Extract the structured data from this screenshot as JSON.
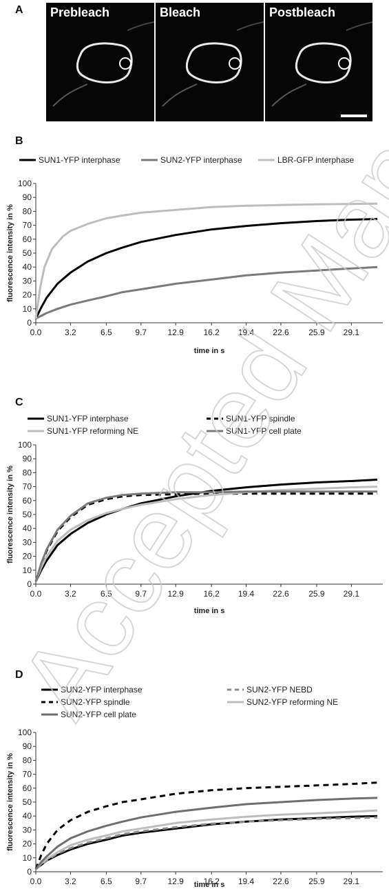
{
  "panel_letters": {
    "a": "A",
    "b": "B",
    "c": "C",
    "d": "D"
  },
  "micrographs": {
    "labels": [
      "Prebleach",
      "Bleach",
      "Postbleach"
    ],
    "ring_color": "#e8e8e8",
    "circle_color": "#ffffff"
  },
  "watermark": {
    "text": "Accepted Manuscript"
  },
  "chart_data": [
    {
      "type": "line",
      "panel": "B",
      "xlabel": "time in s",
      "ylabel": "fluorescence intensity in %",
      "ylim": [
        0,
        100
      ],
      "yticks": [
        0,
        10,
        20,
        30,
        40,
        50,
        60,
        70,
        80,
        90,
        100
      ],
      "xticks": [
        "0.0",
        "3.2",
        "6.5",
        "9.7",
        "12.9",
        "16.2",
        "19.4",
        "22.6",
        "25.9",
        "29.1"
      ],
      "xmax": 32,
      "legend": "top",
      "series": [
        {
          "name": "SUN1-YFP interphase",
          "color": "#000000",
          "dash": "solid",
          "x": [
            0,
            0.5,
            1,
            2,
            3.2,
            4.8,
            6.5,
            8,
            9.7,
            12.9,
            16.2,
            19.4,
            22.6,
            25.9,
            29.1,
            31.5
          ],
          "values": [
            3,
            11,
            18,
            28,
            36,
            44,
            50,
            54,
            58,
            63,
            67,
            69.5,
            71.5,
            73,
            74,
            74.5
          ]
        },
        {
          "name": "SUN2-YFP interphase",
          "color": "#7a7a7a",
          "dash": "solid",
          "x": [
            0,
            0.5,
            1,
            2,
            3.2,
            4.8,
            6.5,
            8,
            9.7,
            12.9,
            16.2,
            19.4,
            22.6,
            25.9,
            29.1,
            31.5
          ],
          "values": [
            3,
            5,
            7,
            10,
            13,
            16,
            19,
            22,
            24,
            28,
            31,
            34,
            36,
            37.5,
            39,
            40
          ]
        },
        {
          "name": "LBR-GFP interphase",
          "color": "#bdbdbd",
          "dash": "solid",
          "x": [
            0,
            0.4,
            0.8,
            1.5,
            2.5,
            3.2,
            4.8,
            6.5,
            8,
            9.7,
            12.9,
            16.2,
            19.4,
            22.6,
            25.9,
            29.1,
            31.5
          ],
          "values": [
            3,
            25,
            40,
            53,
            62,
            66,
            71,
            75,
            77,
            79,
            81,
            83,
            84,
            84.5,
            85,
            85.3,
            85.5
          ]
        }
      ]
    },
    {
      "type": "line",
      "panel": "C",
      "xlabel": "time in s",
      "ylabel": "fluorescence intensity in %",
      "ylim": [
        0,
        100
      ],
      "yticks": [
        0,
        10,
        20,
        30,
        40,
        50,
        60,
        70,
        80,
        90,
        100
      ],
      "xticks": [
        "0.0",
        "3.2",
        "6.5",
        "9.7",
        "12.9",
        "16.2",
        "19.4",
        "22.6",
        "25.9",
        "29.1"
      ],
      "xmax": 32,
      "legend": "top",
      "series": [
        {
          "name": "SUN1-YFP interphase",
          "color": "#000000",
          "dash": "solid",
          "x": [
            0,
            0.5,
            1,
            2,
            3.2,
            4.8,
            6.5,
            8,
            9.7,
            12.9,
            16.2,
            19.4,
            22.6,
            25.9,
            29.1,
            31.5
          ],
          "values": [
            2,
            10,
            17,
            28,
            36,
            44,
            50,
            54,
            58,
            63,
            67,
            69.5,
            71.5,
            73,
            74,
            75
          ]
        },
        {
          "name": "SUN1-YFP spindle",
          "color": "#000000",
          "dash": "dashed",
          "x": [
            0,
            0.5,
            1,
            2,
            3.2,
            4.8,
            6.5,
            8,
            9.7,
            12.9,
            16.2,
            19.4,
            22.6,
            25.9,
            29.1,
            31.5
          ],
          "values": [
            2,
            14,
            24,
            38,
            48,
            57,
            61,
            63,
            64,
            64.5,
            65,
            65,
            65,
            65,
            65,
            65
          ]
        },
        {
          "name": "SUN1-YFP reforming NE",
          "color": "#bdbdbd",
          "dash": "solid",
          "x": [
            0,
            0.5,
            1,
            2,
            3.2,
            4.8,
            6.5,
            8,
            9.7,
            12.9,
            16.2,
            19.4,
            22.6,
            25.9,
            29.1,
            31.5
          ],
          "values": [
            2,
            12,
            20,
            31,
            39,
            46,
            51,
            54,
            57,
            61,
            64,
            66,
            67.5,
            68.5,
            69.5,
            70
          ]
        },
        {
          "name": "SUN1-YFP cell plate",
          "color": "#7a7a7a",
          "dash": "solid",
          "x": [
            0,
            0.5,
            1,
            2,
            3.2,
            4.8,
            6.5,
            8,
            9.7,
            12.9,
            16.2,
            19.4,
            22.6,
            25.9,
            29.1,
            31.5
          ],
          "values": [
            2,
            15,
            25,
            39,
            49,
            58,
            62,
            64,
            65,
            66,
            66,
            66.5,
            66.5,
            66.5,
            66.5,
            66.5
          ]
        }
      ]
    },
    {
      "type": "line",
      "panel": "D",
      "xlabel": "time in s",
      "ylabel": "fluorescence intensity in %",
      "ylim": [
        0,
        100
      ],
      "yticks": [
        0,
        10,
        20,
        30,
        40,
        50,
        60,
        70,
        80,
        90,
        100
      ],
      "xticks": [
        "0.0",
        "3.2",
        "6.5",
        "9.7",
        "12.9",
        "16.2",
        "19.4",
        "22.6",
        "25.9",
        "29.1"
      ],
      "xmax": 32,
      "legend": "top",
      "series": [
        {
          "name": "SUN2-YFP interphase",
          "color": "#000000",
          "dash": "solid",
          "x": [
            0,
            0.5,
            1,
            2,
            3.2,
            4.8,
            6.5,
            8,
            9.7,
            12.9,
            16.2,
            19.4,
            22.6,
            25.9,
            29.1,
            31.5
          ],
          "values": [
            2,
            5,
            8,
            12,
            16,
            20,
            23,
            26,
            28,
            31,
            34,
            36,
            37.5,
            38.5,
            39.5,
            40
          ]
        },
        {
          "name": "SUN2-YFP NEBD",
          "color": "#8a8a8a",
          "dash": "dashed",
          "x": [
            0,
            0.5,
            1,
            2,
            3.2,
            4.8,
            6.5,
            8,
            9.7,
            12.9,
            16.2,
            19.4,
            22.6,
            25.9,
            29.1,
            31.5
          ],
          "values": [
            2,
            5,
            8,
            13,
            17,
            21,
            24,
            27,
            29,
            32,
            34.5,
            36,
            37,
            38,
            38.5,
            39
          ]
        },
        {
          "name": "SUN2-YFP spindle",
          "color": "#000000",
          "dash": "dashed",
          "x": [
            0,
            0.5,
            1,
            2,
            3.2,
            4.8,
            6.5,
            8,
            9.7,
            12.9,
            16.2,
            19.4,
            22.6,
            25.9,
            29.1,
            31.5
          ],
          "values": [
            2,
            12,
            20,
            30,
            37,
            43,
            47,
            50,
            52,
            56,
            58.5,
            60,
            61,
            62,
            63,
            64
          ]
        },
        {
          "name": "SUN2-YFP reforming NE",
          "color": "#bdbdbd",
          "dash": "solid",
          "x": [
            0,
            0.5,
            1,
            2,
            3.2,
            4.8,
            6.5,
            8,
            9.7,
            12.9,
            16.2,
            19.4,
            22.6,
            25.9,
            29.1,
            31.5
          ],
          "values": [
            2,
            6,
            9,
            14,
            19,
            23,
            26,
            29,
            31,
            35,
            37.5,
            39.5,
            41,
            42,
            43,
            44
          ]
        },
        {
          "name": "SUN2-YFP cell plate",
          "color": "#6e6e6e",
          "dash": "solid",
          "x": [
            0,
            0.5,
            1,
            2,
            3.2,
            4.8,
            6.5,
            8,
            9.7,
            12.9,
            16.2,
            19.4,
            22.6,
            25.9,
            29.1,
            31.5
          ],
          "values": [
            2,
            7,
            11,
            18,
            24,
            29,
            33,
            36,
            39,
            43,
            46,
            48.5,
            50,
            51.5,
            52.5,
            53
          ]
        }
      ]
    }
  ]
}
